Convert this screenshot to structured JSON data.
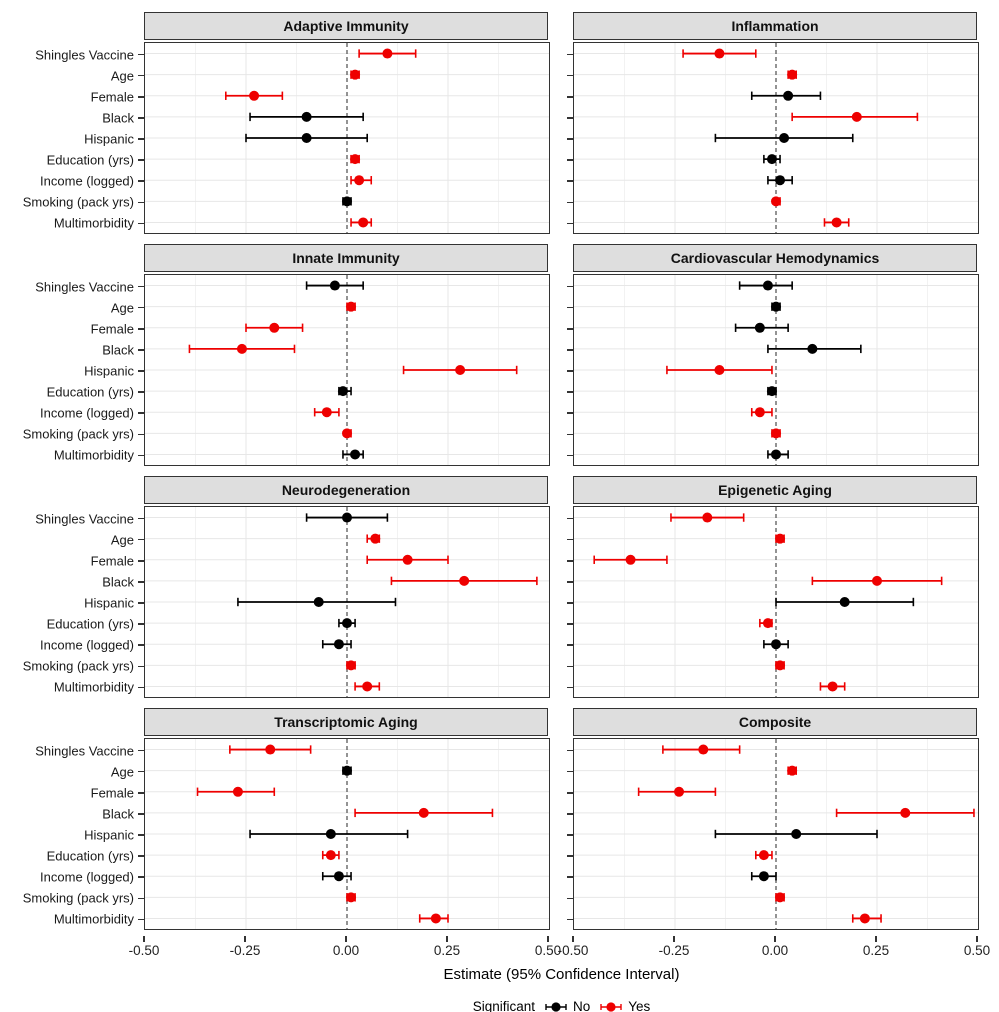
{
  "chart_data": {
    "type": "scatter",
    "variant": "faceted-forest-plot-dot-whisker",
    "title": "",
    "x_axis": {
      "label": "Estimate (95% Confidence Interval)",
      "range": [
        -0.5,
        0.5
      ],
      "ticks": [
        {
          "v": -0.5,
          "label": "-0.50"
        },
        {
          "v": -0.25,
          "label": "-0.25"
        },
        {
          "v": 0.0,
          "label": "0.00"
        },
        {
          "v": 0.25,
          "label": "0.25"
        },
        {
          "v": 0.5,
          "label": "0.50"
        }
      ],
      "grid_minor_step": 0.125,
      "zero_reference_line": "dashed"
    },
    "categories": [
      "Shingles Vaccine",
      "Age",
      "Female",
      "Black",
      "Hispanic",
      "Education (yrs)",
      "Income (logged)",
      "Smoking (pack yrs)",
      "Multimorbidity"
    ],
    "legend": {
      "title": "Significant",
      "items": [
        {
          "label": "No",
          "color": "#000000"
        },
        {
          "label": "Yes",
          "color": "#EE0000"
        }
      ],
      "position": "bottom"
    },
    "colors": {
      "significant_yes": "#EE0000",
      "significant_no": "#000000",
      "strip_bg": "#DEDEDE",
      "panel_border": "#333333",
      "grid_major": "#E7E7E7",
      "grid_minor": "#F2F2F2",
      "zero_line": "#595959"
    },
    "panels": [
      {
        "title": "Adaptive Immunity",
        "points": [
          {
            "est": 0.1,
            "lo": 0.03,
            "hi": 0.17,
            "sig": true
          },
          {
            "est": 0.02,
            "lo": 0.01,
            "hi": 0.03,
            "sig": true
          },
          {
            "est": -0.23,
            "lo": -0.3,
            "hi": -0.16,
            "sig": true
          },
          {
            "est": -0.1,
            "lo": -0.24,
            "hi": 0.04,
            "sig": false
          },
          {
            "est": -0.1,
            "lo": -0.25,
            "hi": 0.05,
            "sig": false
          },
          {
            "est": 0.02,
            "lo": 0.01,
            "hi": 0.03,
            "sig": true
          },
          {
            "est": 0.03,
            "lo": 0.01,
            "hi": 0.06,
            "sig": true
          },
          {
            "est": 0.0,
            "lo": -0.01,
            "hi": 0.01,
            "sig": false
          },
          {
            "est": 0.04,
            "lo": 0.01,
            "hi": 0.06,
            "sig": true
          }
        ]
      },
      {
        "title": "Inflammation",
        "points": [
          {
            "est": -0.14,
            "lo": -0.23,
            "hi": -0.05,
            "sig": true
          },
          {
            "est": 0.04,
            "lo": 0.03,
            "hi": 0.05,
            "sig": true
          },
          {
            "est": 0.03,
            "lo": -0.06,
            "hi": 0.11,
            "sig": false
          },
          {
            "est": 0.2,
            "lo": 0.04,
            "hi": 0.35,
            "sig": true
          },
          {
            "est": 0.02,
            "lo": -0.15,
            "hi": 0.19,
            "sig": false
          },
          {
            "est": -0.01,
            "lo": -0.03,
            "hi": 0.01,
            "sig": false
          },
          {
            "est": 0.01,
            "lo": -0.02,
            "hi": 0.04,
            "sig": false
          },
          {
            "est": 0.0,
            "lo": 0.0,
            "hi": 0.01,
            "sig": true
          },
          {
            "est": 0.15,
            "lo": 0.12,
            "hi": 0.18,
            "sig": true
          }
        ]
      },
      {
        "title": "Innate Immunity",
        "points": [
          {
            "est": -0.03,
            "lo": -0.1,
            "hi": 0.04,
            "sig": false
          },
          {
            "est": 0.01,
            "lo": 0.0,
            "hi": 0.02,
            "sig": true
          },
          {
            "est": -0.18,
            "lo": -0.25,
            "hi": -0.11,
            "sig": true
          },
          {
            "est": -0.26,
            "lo": -0.39,
            "hi": -0.13,
            "sig": true
          },
          {
            "est": 0.28,
            "lo": 0.14,
            "hi": 0.42,
            "sig": true
          },
          {
            "est": -0.01,
            "lo": -0.02,
            "hi": 0.01,
            "sig": false
          },
          {
            "est": -0.05,
            "lo": -0.08,
            "hi": -0.02,
            "sig": true
          },
          {
            "est": 0.0,
            "lo": 0.0,
            "hi": 0.01,
            "sig": true
          },
          {
            "est": 0.02,
            "lo": -0.01,
            "hi": 0.04,
            "sig": false
          }
        ]
      },
      {
        "title": "Cardiovascular Hemodynamics",
        "points": [
          {
            "est": -0.02,
            "lo": -0.09,
            "hi": 0.04,
            "sig": false
          },
          {
            "est": 0.0,
            "lo": -0.01,
            "hi": 0.01,
            "sig": false
          },
          {
            "est": -0.04,
            "lo": -0.1,
            "hi": 0.03,
            "sig": false
          },
          {
            "est": 0.09,
            "lo": -0.02,
            "hi": 0.21,
            "sig": false
          },
          {
            "est": -0.14,
            "lo": -0.27,
            "hi": -0.01,
            "sig": true
          },
          {
            "est": -0.01,
            "lo": -0.02,
            "hi": 0.0,
            "sig": false
          },
          {
            "est": -0.04,
            "lo": -0.06,
            "hi": -0.01,
            "sig": true
          },
          {
            "est": 0.0,
            "lo": -0.01,
            "hi": 0.01,
            "sig": true
          },
          {
            "est": 0.0,
            "lo": -0.02,
            "hi": 0.03,
            "sig": false
          }
        ]
      },
      {
        "title": "Neurodegeneration",
        "points": [
          {
            "est": 0.0,
            "lo": -0.1,
            "hi": 0.1,
            "sig": false
          },
          {
            "est": 0.07,
            "lo": 0.05,
            "hi": 0.08,
            "sig": true
          },
          {
            "est": 0.15,
            "lo": 0.05,
            "hi": 0.25,
            "sig": true
          },
          {
            "est": 0.29,
            "lo": 0.11,
            "hi": 0.47,
            "sig": true
          },
          {
            "est": -0.07,
            "lo": -0.27,
            "hi": 0.12,
            "sig": false
          },
          {
            "est": 0.0,
            "lo": -0.02,
            "hi": 0.02,
            "sig": false
          },
          {
            "est": -0.02,
            "lo": -0.06,
            "hi": 0.01,
            "sig": false
          },
          {
            "est": 0.01,
            "lo": 0.0,
            "hi": 0.02,
            "sig": true
          },
          {
            "est": 0.05,
            "lo": 0.02,
            "hi": 0.08,
            "sig": true
          }
        ]
      },
      {
        "title": "Epigenetic Aging",
        "points": [
          {
            "est": -0.17,
            "lo": -0.26,
            "hi": -0.08,
            "sig": true
          },
          {
            "est": 0.01,
            "lo": 0.0,
            "hi": 0.02,
            "sig": true
          },
          {
            "est": -0.36,
            "lo": -0.45,
            "hi": -0.27,
            "sig": true
          },
          {
            "est": 0.25,
            "lo": 0.09,
            "hi": 0.41,
            "sig": true
          },
          {
            "est": 0.17,
            "lo": 0.0,
            "hi": 0.34,
            "sig": false
          },
          {
            "est": -0.02,
            "lo": -0.04,
            "hi": -0.01,
            "sig": true
          },
          {
            "est": 0.0,
            "lo": -0.03,
            "hi": 0.03,
            "sig": false
          },
          {
            "est": 0.01,
            "lo": 0.0,
            "hi": 0.02,
            "sig": true
          },
          {
            "est": 0.14,
            "lo": 0.11,
            "hi": 0.17,
            "sig": true
          }
        ]
      },
      {
        "title": "Transcriptomic Aging",
        "points": [
          {
            "est": -0.19,
            "lo": -0.29,
            "hi": -0.09,
            "sig": true
          },
          {
            "est": 0.0,
            "lo": -0.01,
            "hi": 0.01,
            "sig": false
          },
          {
            "est": -0.27,
            "lo": -0.37,
            "hi": -0.18,
            "sig": true
          },
          {
            "est": 0.19,
            "lo": 0.02,
            "hi": 0.36,
            "sig": true
          },
          {
            "est": -0.04,
            "lo": -0.24,
            "hi": 0.15,
            "sig": false
          },
          {
            "est": -0.04,
            "lo": -0.06,
            "hi": -0.02,
            "sig": true
          },
          {
            "est": -0.02,
            "lo": -0.06,
            "hi": 0.01,
            "sig": false
          },
          {
            "est": 0.01,
            "lo": 0.0,
            "hi": 0.02,
            "sig": true
          },
          {
            "est": 0.22,
            "lo": 0.18,
            "hi": 0.25,
            "sig": true
          }
        ]
      },
      {
        "title": "Composite",
        "points": [
          {
            "est": -0.18,
            "lo": -0.28,
            "hi": -0.09,
            "sig": true
          },
          {
            "est": 0.04,
            "lo": 0.03,
            "hi": 0.05,
            "sig": true
          },
          {
            "est": -0.24,
            "lo": -0.34,
            "hi": -0.15,
            "sig": true
          },
          {
            "est": 0.32,
            "lo": 0.15,
            "hi": 0.49,
            "sig": true
          },
          {
            "est": 0.05,
            "lo": -0.15,
            "hi": 0.25,
            "sig": false
          },
          {
            "est": -0.03,
            "lo": -0.05,
            "hi": -0.01,
            "sig": true
          },
          {
            "est": -0.03,
            "lo": -0.06,
            "hi": 0.0,
            "sig": false
          },
          {
            "est": 0.01,
            "lo": 0.0,
            "hi": 0.02,
            "sig": true
          },
          {
            "est": 0.22,
            "lo": 0.19,
            "hi": 0.26,
            "sig": true
          }
        ]
      }
    ]
  }
}
